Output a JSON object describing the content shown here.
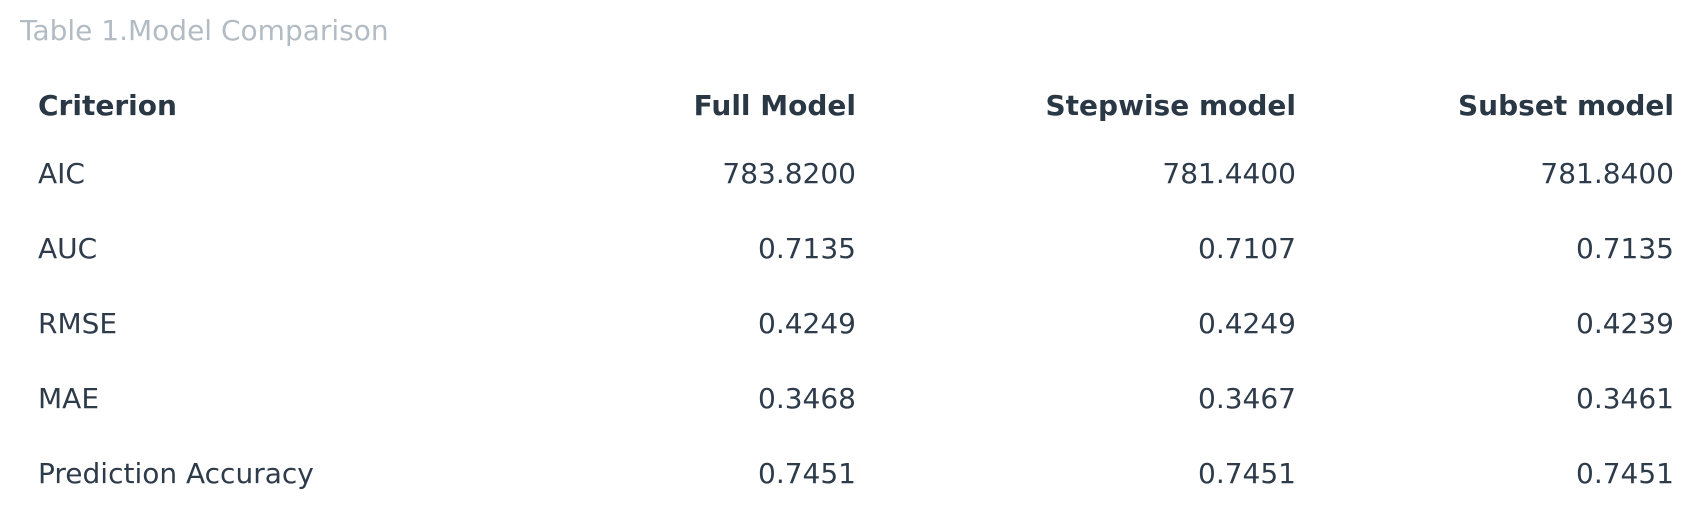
{
  "caption": "Table 1.Model Comparison",
  "table": {
    "headers": [
      "Criterion",
      "Full Model",
      "Stepwise model",
      "Subset model"
    ],
    "rows": [
      [
        "AIC",
        "783.8200",
        "781.4400",
        "781.8400"
      ],
      [
        "AUC",
        "0.7135",
        "0.7107",
        "0.7135"
      ],
      [
        "RMSE",
        "0.4249",
        "0.4249",
        "0.4239"
      ],
      [
        "MAE",
        "0.3468",
        "0.3467",
        "0.3461"
      ],
      [
        "Prediction Accuracy",
        "0.7451",
        "0.7451",
        "0.7451"
      ]
    ]
  }
}
